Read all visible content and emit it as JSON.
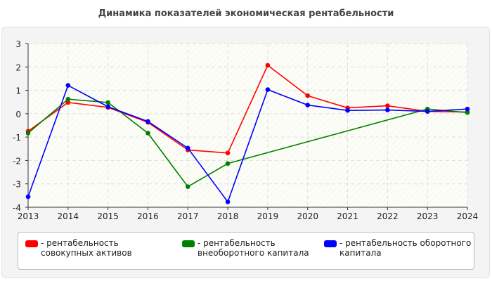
{
  "chart_data": {
    "type": "line",
    "title": "Динамика показателей экономическая рентабельности",
    "categories": [
      "2013",
      "2014",
      "2015",
      "2016",
      "2017",
      "2018",
      "2019",
      "2020",
      "2021",
      "2022",
      "2023",
      "2024"
    ],
    "ylim": [
      -4,
      3
    ],
    "yticks": [
      3,
      2,
      1,
      0,
      -1,
      -2,
      -3,
      -4
    ],
    "grid": true,
    "legend_position": "bottom",
    "series": [
      {
        "name": "- рентабельность совокупных активов",
        "color": "#ff0000",
        "values": [
          -0.75,
          0.48,
          0.27,
          -0.37,
          -1.55,
          -1.68,
          2.07,
          0.77,
          0.25,
          0.34,
          0.1,
          0.07
        ]
      },
      {
        "name": "- рентабельность внеоборотного капитала",
        "color": "#008000",
        "values": [
          -0.83,
          0.62,
          0.48,
          -0.83,
          -3.12,
          -2.13,
          null,
          null,
          null,
          null,
          0.2,
          0.05
        ]
      },
      {
        "name": "- рентабельность оборотного капитала",
        "color": "#0000ff",
        "values": [
          -3.55,
          1.21,
          0.3,
          -0.33,
          -1.47,
          -3.77,
          1.03,
          0.37,
          0.14,
          0.16,
          0.1,
          0.2
        ]
      }
    ]
  }
}
